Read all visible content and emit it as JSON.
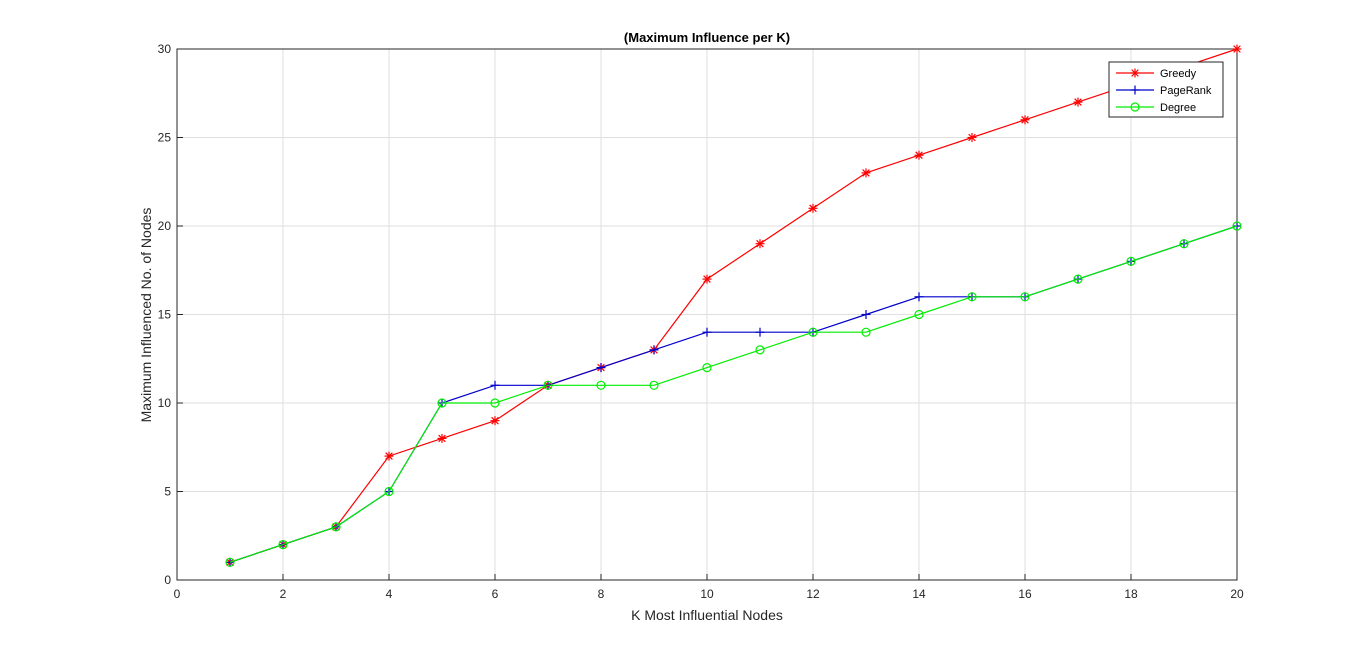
{
  "chart_data": {
    "type": "line",
    "title": "(Maximum Influence per K)",
    "xlabel": "K Most Influential Nodes",
    "ylabel": "Maximum Influenced No. of Nodes",
    "xlim": [
      0,
      20
    ],
    "ylim": [
      0,
      30
    ],
    "xticks": [
      0,
      2,
      4,
      6,
      8,
      10,
      12,
      14,
      16,
      18,
      20
    ],
    "yticks": [
      0,
      5,
      10,
      15,
      20,
      25,
      30
    ],
    "grid": true,
    "legend_position": "top-right",
    "series": [
      {
        "name": "Greedy",
        "color": "#ff0000",
        "marker": "asterisk",
        "x": [
          1,
          2,
          3,
          4,
          5,
          6,
          7,
          8,
          9,
          10,
          11,
          12,
          13,
          14,
          15,
          16,
          17,
          18,
          19,
          20
        ],
        "y": [
          1,
          2,
          3,
          7,
          8,
          9,
          11,
          12,
          13,
          17,
          19,
          21,
          23,
          24,
          25,
          26,
          27,
          28,
          29,
          30
        ]
      },
      {
        "name": "PageRank",
        "color": "#0000cc",
        "marker": "plus",
        "x": [
          1,
          2,
          3,
          4,
          5,
          6,
          7,
          8,
          9,
          10,
          11,
          12,
          13,
          14,
          15,
          16,
          17,
          18,
          19,
          20
        ],
        "y": [
          1,
          2,
          3,
          5,
          10,
          11,
          11,
          12,
          13,
          14,
          14,
          14,
          15,
          16,
          16,
          16,
          17,
          18,
          19,
          20
        ]
      },
      {
        "name": "Degree",
        "color": "#00ee00",
        "marker": "circle",
        "x": [
          1,
          2,
          3,
          4,
          5,
          6,
          7,
          8,
          9,
          10,
          11,
          12,
          13,
          14,
          15,
          16,
          17,
          18,
          19,
          20
        ],
        "y": [
          1,
          2,
          3,
          5,
          10,
          10,
          11,
          11,
          11,
          12,
          13,
          14,
          14,
          15,
          16,
          16,
          17,
          18,
          19,
          20
        ]
      }
    ]
  }
}
